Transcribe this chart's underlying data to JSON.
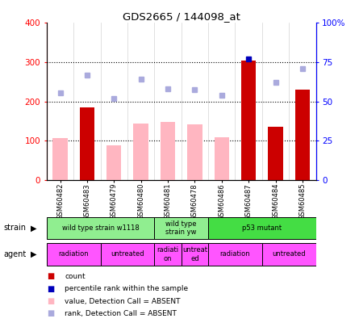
{
  "title": "GDS2665 / 144098_at",
  "samples": [
    "GSM60482",
    "GSM60483",
    "GSM60479",
    "GSM60480",
    "GSM60481",
    "GSM60478",
    "GSM60486",
    "GSM60487",
    "GSM60484",
    "GSM60485"
  ],
  "count_values": [
    null,
    185,
    null,
    null,
    null,
    null,
    null,
    305,
    135,
    230
  ],
  "rank_values": [
    null,
    null,
    null,
    null,
    null,
    null,
    null,
    308,
    null,
    null
  ],
  "value_absent": [
    107,
    null,
    88,
    143,
    148,
    142,
    108,
    null,
    null,
    null
  ],
  "rank_absent": [
    222,
    267,
    207,
    257,
    232,
    230,
    215,
    null,
    248,
    283
  ],
  "ylim_left": [
    0,
    400
  ],
  "ylim_right": [
    0,
    100
  ],
  "left_ticks": [
    0,
    100,
    200,
    300,
    400
  ],
  "right_ticks": [
    0,
    25,
    50,
    75,
    100
  ],
  "right_tick_labels": [
    "0",
    "25",
    "50",
    "75",
    "100%"
  ],
  "strain_groups": [
    {
      "label": "wild type strain w1118",
      "start": 0,
      "end": 4,
      "color": "#90EE90"
    },
    {
      "label": "wild type\nstrain yw",
      "start": 4,
      "end": 6,
      "color": "#90EE90"
    },
    {
      "label": "p53 mutant",
      "start": 6,
      "end": 10,
      "color": "#44DD44"
    }
  ],
  "agent_groups": [
    {
      "label": "radiation",
      "start": 0,
      "end": 2,
      "color": "#FF55FF"
    },
    {
      "label": "untreated",
      "start": 2,
      "end": 4,
      "color": "#FF55FF"
    },
    {
      "label": "radiati\non",
      "start": 4,
      "end": 5,
      "color": "#FF55FF"
    },
    {
      "label": "untreat\ned",
      "start": 5,
      "end": 6,
      "color": "#FF55FF"
    },
    {
      "label": "radiation",
      "start": 6,
      "end": 8,
      "color": "#FF55FF"
    },
    {
      "label": "untreated",
      "start": 8,
      "end": 10,
      "color": "#FF55FF"
    }
  ],
  "count_color": "#CC0000",
  "rank_color": "#0000BB",
  "value_absent_color": "#FFB6C1",
  "rank_absent_color": "#AAAADD",
  "bar_width": 0.55,
  "grid_color": "black",
  "grid_style": "dotted",
  "marker_size": 5
}
